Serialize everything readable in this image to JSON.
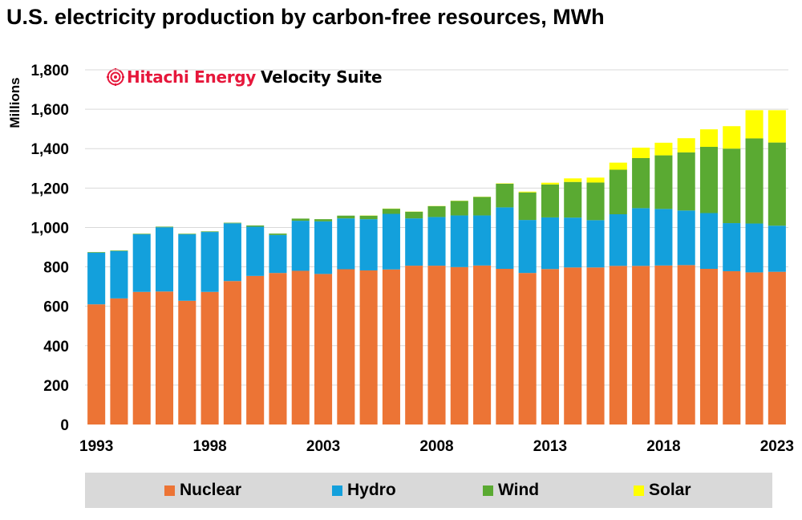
{
  "title": "U.S. electricity production by carbon-free resources, MWh",
  "brand": {
    "name": "Hitachi Energy",
    "suite": "Velocity Suite",
    "logo_icon": "hitachi-energy-logo-icon"
  },
  "colors": {
    "Nuclear": "#ec7435",
    "Hydro": "#13a0dc",
    "Wind": "#5aaa32",
    "Solar": "#ffff00",
    "grid": "#d9d9d9",
    "legend_bg": "#d9d9d9"
  },
  "chart_data": {
    "type": "bar",
    "stacked": true,
    "title": "U.S. electricity production by carbon-free resources, MWh",
    "xlabel": "",
    "ylabel": "Millions",
    "ylim": [
      0,
      1800
    ],
    "y_ticks": [
      0,
      200,
      400,
      600,
      800,
      "1,000",
      "1,200",
      "1,400",
      "1,600",
      "1,800"
    ],
    "x_tick_labels": [
      "1993",
      "1998",
      "2003",
      "2008",
      "2013",
      "2018",
      "2023"
    ],
    "grid": true,
    "legend_position": "bottom",
    "categories": [
      "1993",
      "1994",
      "1995",
      "1996",
      "1997",
      "1998",
      "1999",
      "2000",
      "2001",
      "2002",
      "2003",
      "2004",
      "2005",
      "2006",
      "2007",
      "2008",
      "2009",
      "2010",
      "2011",
      "2012",
      "2013",
      "2014",
      "2015",
      "2016",
      "2017",
      "2018",
      "2019",
      "2020",
      "2021",
      "2022",
      "2023"
    ],
    "series": [
      {
        "name": "Nuclear",
        "values": [
          610,
          640,
          673,
          675,
          628,
          673,
          728,
          754,
          769,
          780,
          764,
          788,
          782,
          787,
          806,
          806,
          799,
          807,
          790,
          769,
          789,
          797,
          797,
          805,
          805,
          807,
          809,
          790,
          778,
          772,
          775
        ]
      },
      {
        "name": "Hydro",
        "values": [
          262,
          240,
          292,
          326,
          337,
          304,
          293,
          250,
          193,
          254,
          267,
          258,
          260,
          282,
          240,
          247,
          262,
          254,
          312,
          269,
          262,
          253,
          240,
          262,
          293,
          287,
          277,
          283,
          244,
          248,
          234
        ]
      },
      {
        "name": "Wind",
        "values": [
          3,
          3,
          3,
          3,
          3,
          3,
          3,
          6,
          7,
          11,
          11,
          14,
          18,
          26,
          34,
          55,
          74,
          94,
          120,
          140,
          167,
          181,
          191,
          226,
          254,
          272,
          295,
          336,
          378,
          432,
          422
        ]
      },
      {
        "name": "Solar",
        "values": [
          0,
          0,
          0,
          0,
          0,
          0,
          0,
          0,
          0,
          0,
          0,
          0,
          1,
          1,
          1,
          1,
          1,
          1,
          2,
          4,
          9,
          18,
          25,
          36,
          53,
          64,
          72,
          89,
          114,
          143,
          164
        ]
      }
    ]
  }
}
